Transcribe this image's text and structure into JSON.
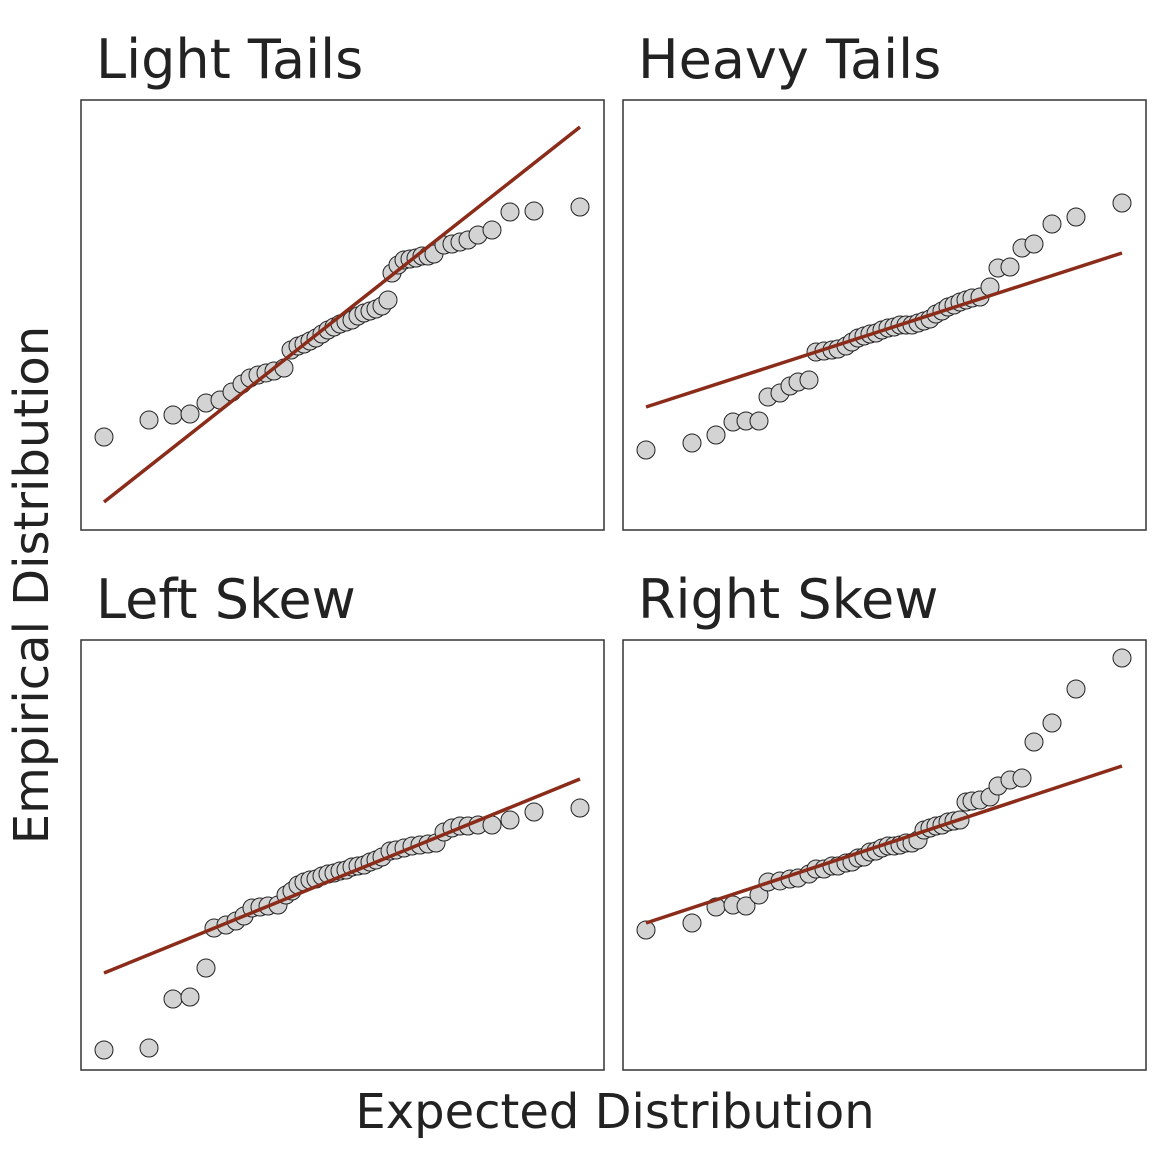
{
  "axis_labels": {
    "x": "Expected Distribution",
    "y": "Empirical Distribution"
  },
  "chart_data": [
    {
      "type": "scatter",
      "title": "Light Tails",
      "xlim": [
        0,
        523
      ],
      "ylim": [
        0,
        430
      ],
      "point_color": "#d3d3d3",
      "x": [
        23,
        68,
        92,
        109,
        125,
        139,
        151,
        161,
        169,
        177,
        185,
        193,
        203,
        210,
        217,
        223,
        229,
        235,
        241,
        247,
        253,
        259,
        265,
        271,
        277,
        283,
        289,
        295,
        301,
        307,
        311,
        317,
        323,
        329,
        335,
        341,
        347,
        353,
        363,
        371,
        379,
        387,
        397,
        411,
        429,
        453,
        499
      ],
      "y": [
        93,
        110,
        115,
        116,
        127,
        130,
        138,
        146,
        152,
        155,
        157,
        159,
        162,
        180,
        184,
        186,
        189,
        192,
        196,
        200,
        203,
        206,
        208,
        210,
        214,
        217,
        219,
        221,
        224,
        230,
        257,
        265,
        270,
        271,
        272,
        274,
        274,
        276,
        285,
        286,
        288,
        290,
        295,
        300,
        318,
        319,
        323
      ],
      "line": {
        "x": [
          23,
          499
        ],
        "y": [
          28,
          403
        ],
        "color": "#8b2c1a"
      }
    },
    {
      "type": "scatter",
      "title": "Heavy Tails",
      "xlim": [
        0,
        523
      ],
      "ylim": [
        0,
        430
      ],
      "point_color": "#d3d3d3",
      "x": [
        23,
        69,
        93,
        110,
        123,
        136,
        145,
        157,
        167,
        175,
        186,
        193,
        201,
        209,
        215,
        223,
        229,
        235,
        241,
        247,
        253,
        259,
        265,
        271,
        277,
        283,
        289,
        295,
        301,
        307,
        313,
        319,
        325,
        331,
        337,
        343,
        349,
        357,
        367,
        375,
        387,
        399,
        411,
        429,
        453,
        499
      ],
      "y": [
        80,
        87,
        95,
        108,
        109,
        109,
        133,
        137,
        144,
        148,
        150,
        178,
        179,
        180,
        181,
        184,
        188,
        192,
        194,
        196,
        197,
        200,
        202,
        203,
        205,
        205,
        205,
        207,
        209,
        211,
        216,
        219,
        223,
        225,
        228,
        230,
        232,
        233,
        243,
        262,
        263,
        282,
        286,
        306,
        313,
        327
      ],
      "line": {
        "x": [
          23,
          499
        ],
        "y": [
          123,
          277
        ],
        "color": "#8b2c1a"
      }
    },
    {
      "type": "scatter",
      "title": "Left Skew",
      "xlim": [
        0,
        523
      ],
      "ylim": [
        0,
        430
      ],
      "point_color": "#d3d3d3",
      "x": [
        23,
        68,
        92,
        109,
        125,
        133,
        145,
        155,
        163,
        171,
        179,
        187,
        197,
        205,
        211,
        217,
        223,
        229,
        235,
        241,
        247,
        253,
        259,
        265,
        271,
        277,
        283,
        289,
        295,
        301,
        309,
        315,
        323,
        331,
        339,
        347,
        355,
        363,
        371,
        379,
        387,
        397,
        411,
        429,
        453,
        499
      ],
      "y": [
        20,
        22,
        71,
        73,
        102,
        142,
        145,
        149,
        154,
        162,
        163,
        164,
        165,
        175,
        179,
        185,
        188,
        190,
        191,
        194,
        196,
        197,
        199,
        200,
        203,
        204,
        205,
        208,
        210,
        213,
        219,
        220,
        222,
        224,
        225,
        226,
        227,
        238,
        242,
        244,
        244,
        245,
        245,
        250,
        258,
        262
      ],
      "line": {
        "x": [
          23,
          499
        ],
        "y": [
          97,
          291
        ],
        "color": "#8b2c1a"
      }
    },
    {
      "type": "scatter",
      "title": "Right Skew",
      "xlim": [
        0,
        523
      ],
      "ylim": [
        0,
        430
      ],
      "point_color": "#d3d3d3",
      "x": [
        23,
        69,
        93,
        110,
        123,
        136,
        145,
        157,
        167,
        175,
        186,
        193,
        201,
        209,
        215,
        223,
        229,
        235,
        241,
        247,
        253,
        259,
        265,
        271,
        277,
        283,
        289,
        295,
        301,
        307,
        313,
        319,
        325,
        331,
        337,
        343,
        349,
        357,
        367,
        375,
        387,
        399,
        411,
        429,
        453,
        499
      ],
      "y": [
        140,
        147,
        163,
        165,
        164,
        175,
        188,
        189,
        191,
        192,
        196,
        201,
        201,
        204,
        204,
        207,
        208,
        212,
        213,
        218,
        219,
        222,
        224,
        224,
        225,
        227,
        227,
        230,
        240,
        242,
        244,
        245,
        248,
        249,
        250,
        268,
        269,
        270,
        273,
        284,
        290,
        292,
        328,
        347,
        381,
        412
      ],
      "line": {
        "x": [
          23,
          499
        ],
        "y": [
          147,
          304
        ],
        "color": "#8b2c1a"
      }
    }
  ]
}
